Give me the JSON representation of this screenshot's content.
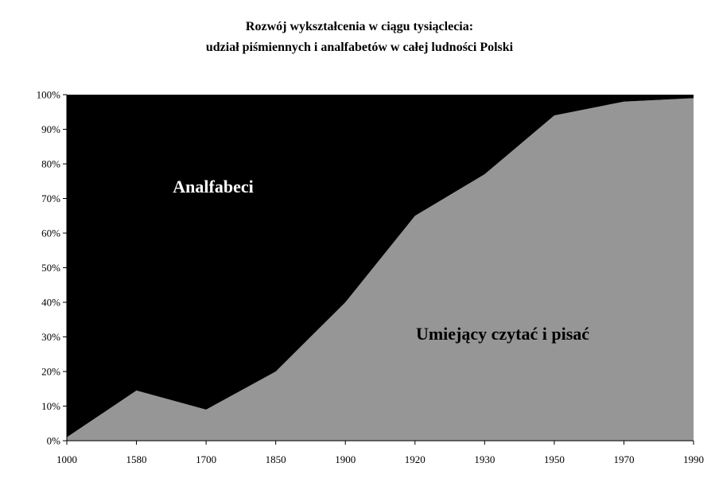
{
  "chart_data": {
    "type": "area",
    "stacked": true,
    "title": "Rozwój wykształcenia w ciągu tysiąclecia:",
    "subtitle": "udział piśmiennych i analfabetów w całej ludności Polski",
    "xlabel": "",
    "ylabel": "",
    "x_axis_type": "category",
    "categories": [
      "1000",
      "1580",
      "1700",
      "1850",
      "1900",
      "1920",
      "1930",
      "1950",
      "1970",
      "1990"
    ],
    "ylim": [
      0,
      100
    ],
    "y_ticks": [
      "0%",
      "10%",
      "20%",
      "30%",
      "40%",
      "50%",
      "60%",
      "70%",
      "80%",
      "90%",
      "100%"
    ],
    "grid": false,
    "legend": "none",
    "series": [
      {
        "name": "Umiejący czytać i pisać",
        "color": "#969696",
        "values": [
          1,
          14.5,
          9,
          20,
          40,
          65,
          77,
          94,
          98,
          99
        ]
      },
      {
        "name": "Analfabeci",
        "color": "#000000",
        "values": [
          99,
          85.5,
          91,
          80,
          60,
          35,
          23,
          6,
          2,
          1
        ]
      }
    ]
  }
}
